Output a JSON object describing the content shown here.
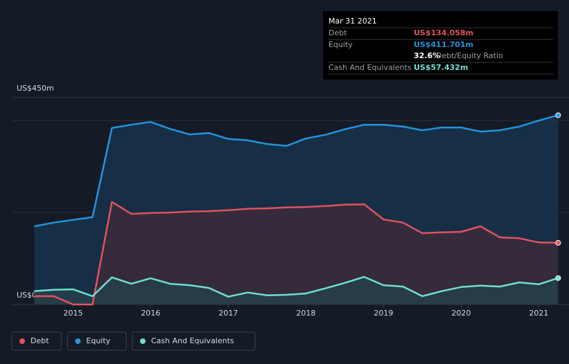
{
  "chart_data": {
    "type": "area-line",
    "x": [
      2014.5,
      2014.75,
      2015,
      2015.25,
      2015.5,
      2015.75,
      2016,
      2016.25,
      2016.5,
      2016.75,
      2017,
      2017.25,
      2017.5,
      2017.75,
      2018,
      2018.25,
      2018.5,
      2018.75,
      2019,
      2019.25,
      2019.5,
      2019.75,
      2020,
      2020.25,
      2020.5,
      2020.75,
      2021,
      2021.25
    ],
    "series": [
      {
        "name": "Debt",
        "color": "#e2525c",
        "fill": "#3b2a3a",
        "values": [
          18,
          18,
          0,
          0,
          223,
          197,
          199,
          200,
          202,
          203,
          205,
          208,
          209,
          211,
          212,
          214,
          217,
          218,
          185,
          178,
          155,
          157,
          158,
          170,
          146,
          144,
          135,
          134.058
        ]
      },
      {
        "name": "Equity",
        "color": "#2394df",
        "fill": "#16324d",
        "values": [
          170,
          178,
          184,
          190,
          384,
          391,
          397,
          382,
          370,
          373,
          360,
          357,
          349,
          345,
          361,
          369,
          381,
          391,
          391,
          387,
          379,
          385,
          385,
          376,
          379,
          387,
          400,
          411.701
        ]
      },
      {
        "name": "Cash And Equivalents",
        "color": "#6fe0d0",
        "fill": "#24404a",
        "values": [
          29,
          32,
          33,
          18,
          59,
          45,
          57,
          45,
          42,
          36,
          17,
          26,
          20,
          21,
          24,
          35,
          47,
          60,
          42,
          39,
          18,
          29,
          38,
          41,
          39,
          48,
          44,
          57.432
        ]
      }
    ],
    "xlim": [
      2014.21,
      2021.39
    ],
    "xticks": [
      2015,
      2016,
      2017,
      2018,
      2019,
      2020,
      2021
    ],
    "ylim": [
      0,
      450
    ],
    "yticks": [
      {
        "value": 0,
        "label": "US$0"
      },
      {
        "value": 450,
        "label": "US$450m"
      }
    ],
    "gridlines": [
      200,
      400
    ],
    "tooltip": {
      "date": "Mar 31 2021",
      "rows": [
        [
          "Debt",
          "US$134.058m"
        ],
        [
          "Equity",
          "US$411.701m"
        ]
      ],
      "ratio": "32.6%",
      "ratio_label": "Debt/Equity Ratio",
      "cash": [
        "Cash And Equivalents",
        "US$57.432m"
      ]
    }
  }
}
